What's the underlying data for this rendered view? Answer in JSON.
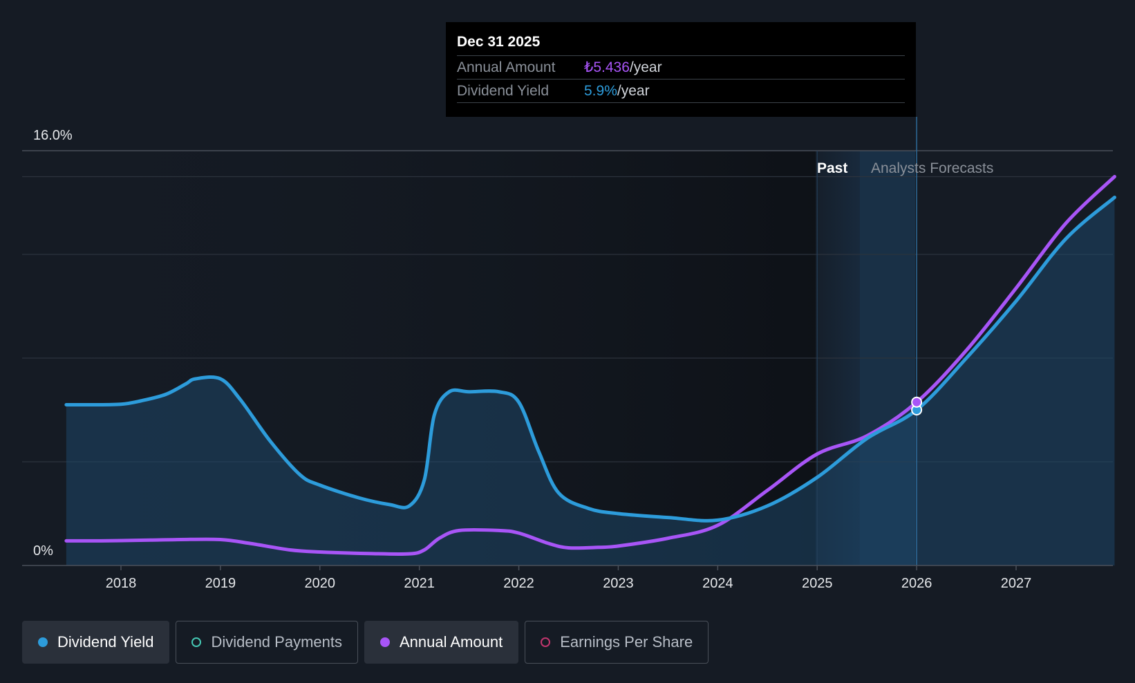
{
  "tooltip": {
    "date": "Dec 31 2025",
    "annual_label": "Annual Amount",
    "annual_value": "₺5.436",
    "annual_unit": "/year",
    "yield_label": "Dividend Yield",
    "yield_value": "5.9%",
    "yield_unit": "/year"
  },
  "regions": {
    "past_label": "Past",
    "forecast_label": "Analysts Forecasts"
  },
  "colors": {
    "yield": "#2d9cdb",
    "annual": "#a855f7",
    "payments": "#45c8b4",
    "eps": "#c2366e",
    "background": "#151b24"
  },
  "legend": [
    {
      "label": "Dividend Yield",
      "state": "active",
      "color": "#2d9cdb"
    },
    {
      "label": "Dividend Payments",
      "state": "inactive",
      "color": "#45c8b4"
    },
    {
      "label": "Annual Amount",
      "state": "active",
      "color": "#a855f7"
    },
    {
      "label": "Earnings Per Share",
      "state": "inactive",
      "color": "#c2366e"
    }
  ],
  "chart_data": {
    "type": "line",
    "y_tick_labels": [
      "16.0%",
      "0%"
    ],
    "ylim": [
      0,
      16
    ],
    "x_tick_labels": [
      "2018",
      "2019",
      "2020",
      "2021",
      "2022",
      "2023",
      "2024",
      "2025",
      "2026",
      "2027"
    ],
    "xlim": [
      2017.45,
      2027.99
    ],
    "grid": true,
    "highlight_x": 2026.0,
    "past_forecast_boundary": 2025.45,
    "series": [
      {
        "name": "Dividend Yield",
        "x": [
          2017.45,
          2017.7,
          2018.0,
          2018.2,
          2018.45,
          2018.65,
          2018.75,
          2019.0,
          2019.2,
          2019.5,
          2019.8,
          2020.0,
          2020.4,
          2020.7,
          2020.9,
          2021.05,
          2021.15,
          2021.3,
          2021.5,
          2021.8,
          2022.0,
          2022.2,
          2022.4,
          2022.7,
          2023.0,
          2023.5,
          2024.0,
          2024.5,
          2025.0,
          2025.5,
          2026.0,
          2026.5,
          2027.0,
          2027.5,
          2027.99
        ],
        "y": [
          6.2,
          6.2,
          6.22,
          6.35,
          6.6,
          7.0,
          7.2,
          7.2,
          6.4,
          4.8,
          3.5,
          3.1,
          2.6,
          2.35,
          2.3,
          3.3,
          5.8,
          6.7,
          6.7,
          6.7,
          6.3,
          4.4,
          2.8,
          2.2,
          2.0,
          1.85,
          1.75,
          2.3,
          3.4,
          4.9,
          6.0,
          8.0,
          10.2,
          12.6,
          14.2
        ]
      },
      {
        "name": "Annual Amount",
        "x": [
          2017.45,
          2017.8,
          2018.0,
          2018.3,
          2018.6,
          2019.0,
          2019.3,
          2019.7,
          2020.0,
          2020.5,
          2020.9,
          2021.05,
          2021.2,
          2021.4,
          2021.8,
          2022.0,
          2022.3,
          2022.5,
          2022.8,
          2023.0,
          2023.5,
          2024.0,
          2024.5,
          2025.0,
          2025.5,
          2026.0,
          2026.5,
          2027.0,
          2027.5,
          2027.99
        ],
        "y": [
          0.95,
          0.95,
          0.96,
          0.98,
          1.0,
          1.0,
          0.85,
          0.6,
          0.52,
          0.46,
          0.45,
          0.6,
          1.05,
          1.35,
          1.35,
          1.25,
          0.85,
          0.68,
          0.7,
          0.75,
          1.05,
          1.55,
          2.9,
          4.3,
          5.0,
          6.3,
          8.3,
          10.7,
          13.2,
          15.0
        ]
      }
    ]
  }
}
